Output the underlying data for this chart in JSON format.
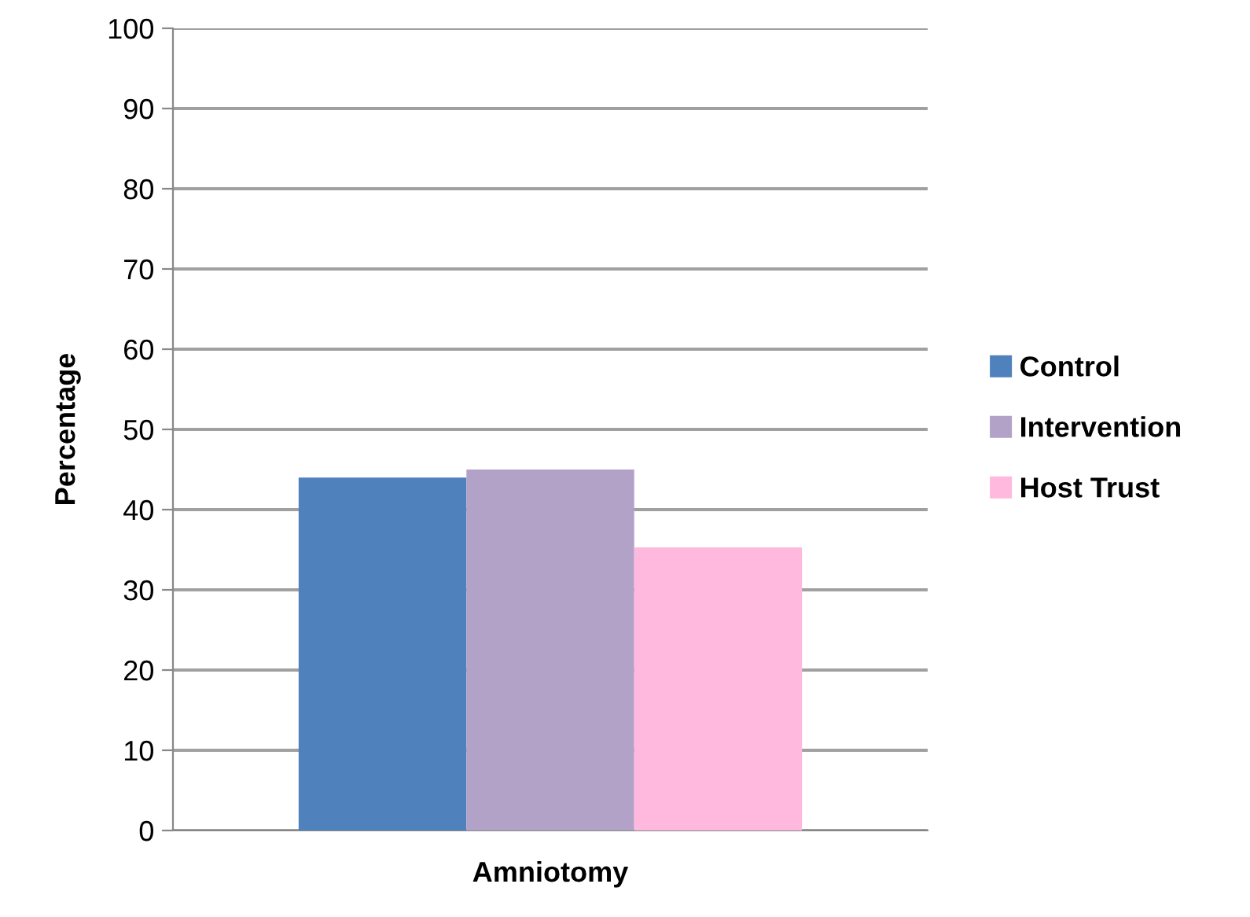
{
  "chart_data": {
    "type": "bar",
    "ylabel": "Percentage",
    "categories": [
      "Amniotomy"
    ],
    "series": [
      {
        "name": "Control",
        "color": "#4f81bd",
        "values": [
          44
        ]
      },
      {
        "name": "Intervention",
        "color": "#b2a2c7",
        "values": [
          45
        ]
      },
      {
        "name": "Host Trust",
        "color": "#ffb9de",
        "values": [
          35.3
        ]
      }
    ],
    "ylim": [
      0,
      100
    ],
    "yticks": [
      0,
      10,
      20,
      30,
      40,
      50,
      60,
      70,
      80,
      90,
      100
    ],
    "grid": "y",
    "legend": "right"
  }
}
